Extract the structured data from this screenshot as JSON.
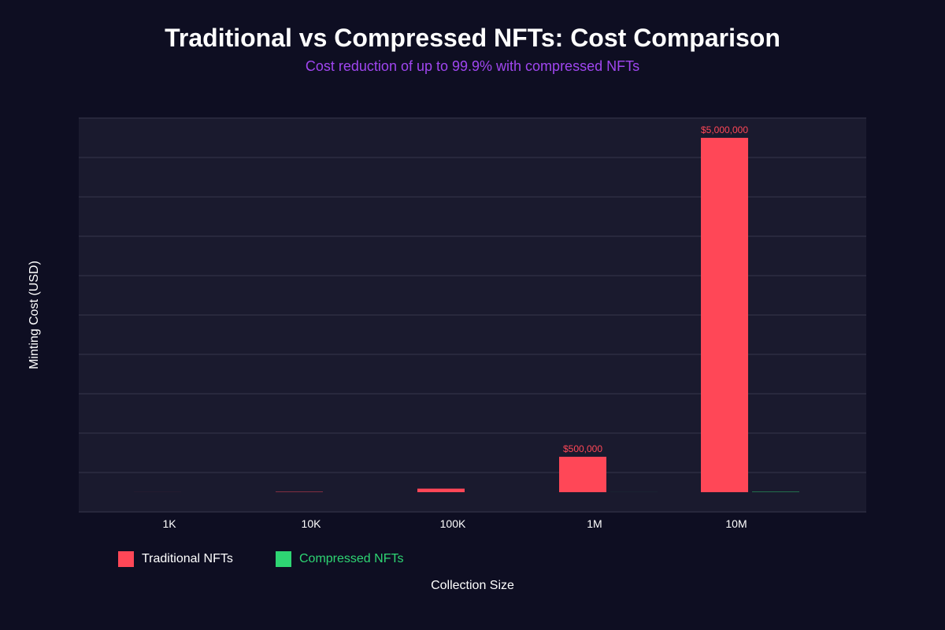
{
  "chart_data": {
    "type": "bar",
    "title": "Traditional vs Compressed NFTs: Cost Comparison",
    "subtitle": "Cost reduction of up to 99.9% with compressed NFTs",
    "xlabel": "Collection Size",
    "ylabel": "Minting Cost (USD)",
    "categories": [
      "1K",
      "10K",
      "100K",
      "1M",
      "10M"
    ],
    "series": [
      {
        "name": "Traditional NFTs",
        "color": "#ff4757",
        "values": [
          500,
          5000,
          50000,
          500000,
          5000000
        ]
      },
      {
        "name": "Compressed NFTs",
        "color": "#2ed573",
        "values": [
          0.5,
          5,
          50,
          500,
          5000
        ]
      }
    ],
    "data_labels": [
      {
        "series": 0,
        "index": 3,
        "text": "$500,000"
      },
      {
        "series": 0,
        "index": 4,
        "text": "$5,000,000"
      }
    ],
    "ylim": [
      0,
      5250000
    ],
    "grid": true,
    "legend_position": "bottom-left"
  },
  "colors": {
    "background": "#0e0e22",
    "plot_background": "#1a1a2e",
    "grid": "#2d2d42",
    "subtitle": "#a046f0",
    "compressed_legend_text": "#2ed573"
  }
}
